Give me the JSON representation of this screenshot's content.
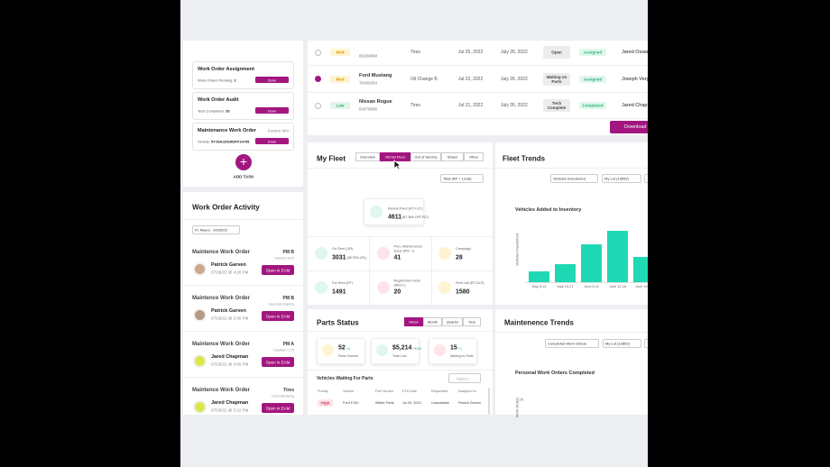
{
  "work_orders": {
    "rows": [
      {
        "priority": "Med",
        "vin": "86334968",
        "service": "Tires",
        "created": "Jul 25, 2022",
        "due": "July 26, 2022",
        "status": "Open",
        "stage": "Assigned",
        "tech": "Jared Ossen"
      },
      {
        "priority": "Med",
        "vehicle": "Ford Mustang",
        "vin": "76490354",
        "service": "Oil Change B",
        "created": "Jul 22, 2022",
        "due": "July 26, 2022",
        "status": "Waiting on Parts",
        "stage": "Assigned",
        "tech": "Joseph Verg"
      },
      {
        "priority": "Low",
        "vehicle": "Nissan Rogue",
        "vin": "54379085",
        "service": "Tires",
        "created": "Jul 21, 2022",
        "due": "July 26, 2022",
        "status": "Tech Complete",
        "stage": "Completed",
        "tech": "Jared Chap"
      }
    ],
    "download": "Download"
  },
  "tasks": {
    "items": [
      {
        "title": "Work Order Assignment",
        "detail_label": "Work Orders Pending:",
        "detail_value": "2",
        "button": "Done"
      },
      {
        "title": "Work Order Audit",
        "detail_label": "Tech Completed:",
        "detail_value": "28",
        "button": "Done"
      },
      {
        "title": "Maintenance Work Order",
        "link": "Invoice Info",
        "detail_label": "Vehicle:",
        "detail_value": "5YJSA1DG9DFP14705",
        "button": "Done"
      }
    ],
    "add_task": "ADD TASK"
  },
  "activity": {
    "title": "Work Order Activity",
    "filter": "Ft. Myers - 3425023",
    "items": [
      {
        "title": "Maintence Work Order",
        "tag": "PM B",
        "vehicle": "Vehicle 6x/3",
        "name": "Patrick Garven",
        "time": "07/26/22 @ 4:26 PM",
        "button": "Open in EAM"
      },
      {
        "title": "Maintence Work Order",
        "tag": "PM B",
        "vehicle": "Hyundai Elantra",
        "name": "Patrick Garven",
        "time": "07/26/22 @ 2:56 PM",
        "button": "Open in EAM"
      },
      {
        "title": "Maintence Work Order",
        "tag": "PM A",
        "vehicle": "Cadillac CT5",
        "name": "Jared Chapman",
        "time": "07/26/22 @ 4:56 PM",
        "button": "Open in EAM"
      },
      {
        "title": "Maintence Work Order",
        "tag": "Tires",
        "vehicle": "Ford Mustang",
        "name": "Jared Chapman",
        "time": "07/26/22 @ 3:22 PM",
        "button": "Open in EAM"
      }
    ]
  },
  "fleet": {
    "title": "My Fleet",
    "tabs": [
      "Overview",
      "Rental Fleet",
      "Out of Service",
      "Stolen",
      "Other"
    ],
    "filter": "Total (AP + Local)",
    "highlight": {
      "label": "Rental Fleet (RT FLT)",
      "value": "4611",
      "share": "(87.36% OFF FLT)"
    },
    "stats": [
      {
        "label": "On Rent (OR)",
        "value": "3031",
        "note": "(65.73% UTL)"
      },
      {
        "label": "Prev. Maintenance Issue (PM - I)",
        "value": "41"
      },
      {
        "label": "Campaign",
        "value": "28"
      },
      {
        "label": "For Rent (FF)",
        "value": "1491"
      },
      {
        "label": "Registration Hold (REG-I)",
        "value": "20"
      },
      {
        "label": "Rent Util (RT-DLR)",
        "value": "1580"
      }
    ]
  },
  "fleet_trends": {
    "title": "Fleet Trends",
    "filters": [
      "Vehicles Inventoried",
      "My Lot (13652)"
    ],
    "chart": {
      "type": "bar",
      "title": "Vehicles Added to Inventory",
      "y_label": "Vehicles Inventoried",
      "categories": [
        "May 8-14",
        "May 15-21",
        "June 5-11",
        "June 12-18",
        "June 19-25"
      ],
      "values": [
        12,
        20,
        43,
        58,
        28
      ],
      "ylim": [
        0,
        70
      ],
      "color": "#1fd9b4"
    }
  },
  "parts": {
    "title": "Parts Status",
    "tabs": [
      "Week",
      "Month",
      "Quarter",
      "Year"
    ],
    "stats": [
      {
        "value": "52",
        "delta": "+8",
        "label": "Parts Ordered"
      },
      {
        "value": "$5,214",
        "delta": "+$130",
        "label": "Total Cost"
      },
      {
        "value": "15",
        "delta": "+1",
        "label": "Waiting for Parts"
      }
    ],
    "waiting": {
      "title": "Vehicles Waiting For Parts",
      "search": "Search...",
      "columns": [
        "Priority",
        "Vehicle",
        "Part Vendor",
        "ETA Date",
        "Requested",
        "Assigned to"
      ],
      "rows": [
        [
          "High",
          "Ford F150",
          "Wilder Parts",
          "Jul 29, 2022",
          "Unavailable",
          "Patrick Garven"
        ]
      ]
    }
  },
  "maintenance": {
    "title": "Maintenence Trends",
    "filters": [
      "Completed Work Orders",
      "My Lot (13652)"
    ],
    "chart_title": "Personal Work Orders Completed",
    "y_label": "Work Orders",
    "tick": "25"
  }
}
